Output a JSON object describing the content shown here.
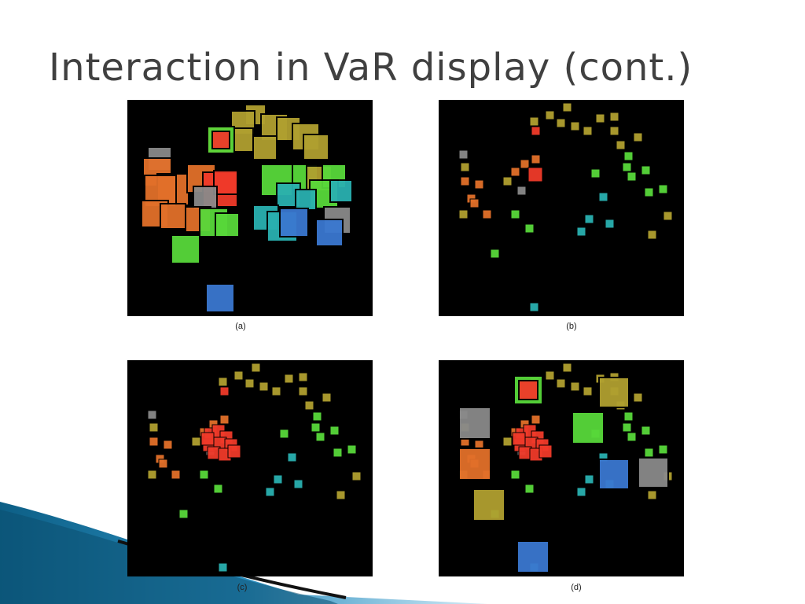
{
  "slide": {
    "title": "Interaction in VaR display (cont.)"
  },
  "panels": [
    {
      "caption": "(a)"
    },
    {
      "caption": "(b)"
    },
    {
      "caption": "(c)"
    },
    {
      "caption": "(d)"
    }
  ],
  "colors": {
    "background": "#000000",
    "red": "#f03a2a",
    "orange": "#e2702a",
    "olive": "#b0a030",
    "green": "#58d83a",
    "teal": "#2ab0b0",
    "blue": "#3a78d0",
    "gray": "#8a8a8a"
  }
}
